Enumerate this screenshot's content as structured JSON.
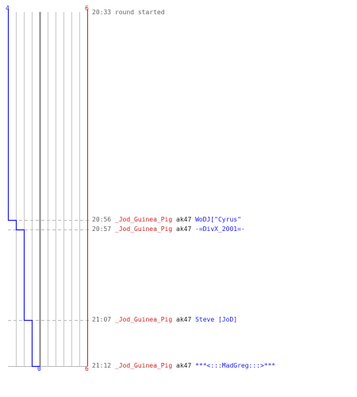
{
  "axis_labels": {
    "blue_top": "4",
    "red_top": "6",
    "blue_bottom": "0",
    "red_bottom": "6"
  },
  "colors": {
    "blue_team": "#1a1aee",
    "red_team": "#cc2222",
    "grid": "#c8c8c8",
    "timestamp": "#666666"
  },
  "start_event": {
    "time": "20:33",
    "text": "round started"
  },
  "kills": [
    {
      "time": "20:56",
      "killer": "_Jod_Guinea_Pig",
      "weapon": "ak47",
      "victim": "WoDJ[\"Cyrus\"",
      "blue_remaining": 3
    },
    {
      "time": "20:57",
      "killer": "_Jod_Guinea_Pig",
      "weapon": "ak47",
      "victim": "-=DivX_2001=-",
      "blue_remaining": 2
    },
    {
      "time": "21:07",
      "killer": "_Jod_Guinea_Pig",
      "weapon": "ak47",
      "victim": "Steve [JoD]",
      "blue_remaining": 1
    },
    {
      "time": "21:12",
      "killer": "_Jod_Guinea_Pig",
      "weapon": "ak47",
      "victim": "***<:::MadGreg:::>***",
      "blue_remaining": 0
    }
  ]
}
